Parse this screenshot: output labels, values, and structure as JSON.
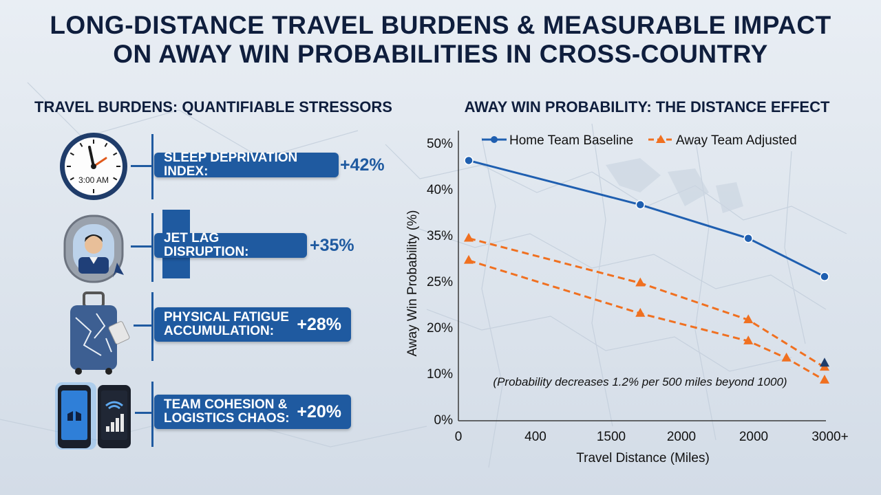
{
  "title": {
    "line1": "LONG-DISTANCE TRAVEL BURDENS & MEASURABLE IMPACT",
    "line2": "ON AWAY WIN PROBABILITIES IN CROSS-COUNTRY"
  },
  "left_panel": {
    "heading": "TRAVEL BURDENS: QUANTIFIABLE STRESSORS",
    "items": [
      {
        "label": "SLEEP DEPRIVATION INDEX:",
        "value": "+42%",
        "icon": "clock-icon",
        "icon_text": "3:00 AM"
      },
      {
        "label": "JET LAG DISRUPTION:",
        "value": "+35%",
        "icon": "airplane-window-icon"
      },
      {
        "label": "PHYSICAL FATIGUE ACCUMULATION:",
        "value": "+28%",
        "icon": "suitcase-icon"
      },
      {
        "label": "TEAM COHESION & LOGISTICS CHAOS:",
        "value": "+20%",
        "icon": "smartphones-icon"
      }
    ]
  },
  "chart_data": {
    "type": "line",
    "title": "AWAY WIN PROBABILITY: THE DISTANCE EFFECT",
    "xlabel": "Travel Distance (Miles)",
    "ylabel": "Away Win Probability (%)",
    "x_tick_labels": [
      "0",
      "400",
      "1500",
      "2000",
      "2000",
      "3000+"
    ],
    "y_tick_labels": [
      "0%",
      "10%",
      "20%",
      "25%",
      "35%",
      "40%",
      "50%"
    ],
    "legend_position": "top",
    "annotation": "(Probability decreases 1.2% per 500 miles beyond 1000)",
    "series": [
      {
        "name": "Home Team Baseline",
        "color": "#1f5fb0",
        "dash": false,
        "marker": "circle",
        "points": [
          {
            "x": 200,
            "y": 46.2
          },
          {
            "x": 1550,
            "y": 38.3
          },
          {
            "x": 2400,
            "y": 34.3
          },
          {
            "x": 3000,
            "y": 26.0
          }
        ]
      },
      {
        "name": "Away Team Adjusted",
        "color": "#f07020",
        "dash": true,
        "marker": "triangle",
        "points": [
          {
            "x": 200,
            "y": 34.3
          },
          {
            "x": 1550,
            "y": 24.8
          },
          {
            "x": 2400,
            "y": 20.8
          },
          {
            "x": 3000,
            "y": 11.3
          }
        ]
      },
      {
        "name": "",
        "color": "#f07020",
        "dash": true,
        "marker": "triangle",
        "points": [
          {
            "x": 200,
            "y": 29.5
          },
          {
            "x": 1550,
            "y": 21.5
          },
          {
            "x": 2400,
            "y": 17.0
          },
          {
            "x": 2700,
            "y": 13.3
          },
          {
            "x": 3000,
            "y": 8.5
          }
        ]
      }
    ]
  }
}
